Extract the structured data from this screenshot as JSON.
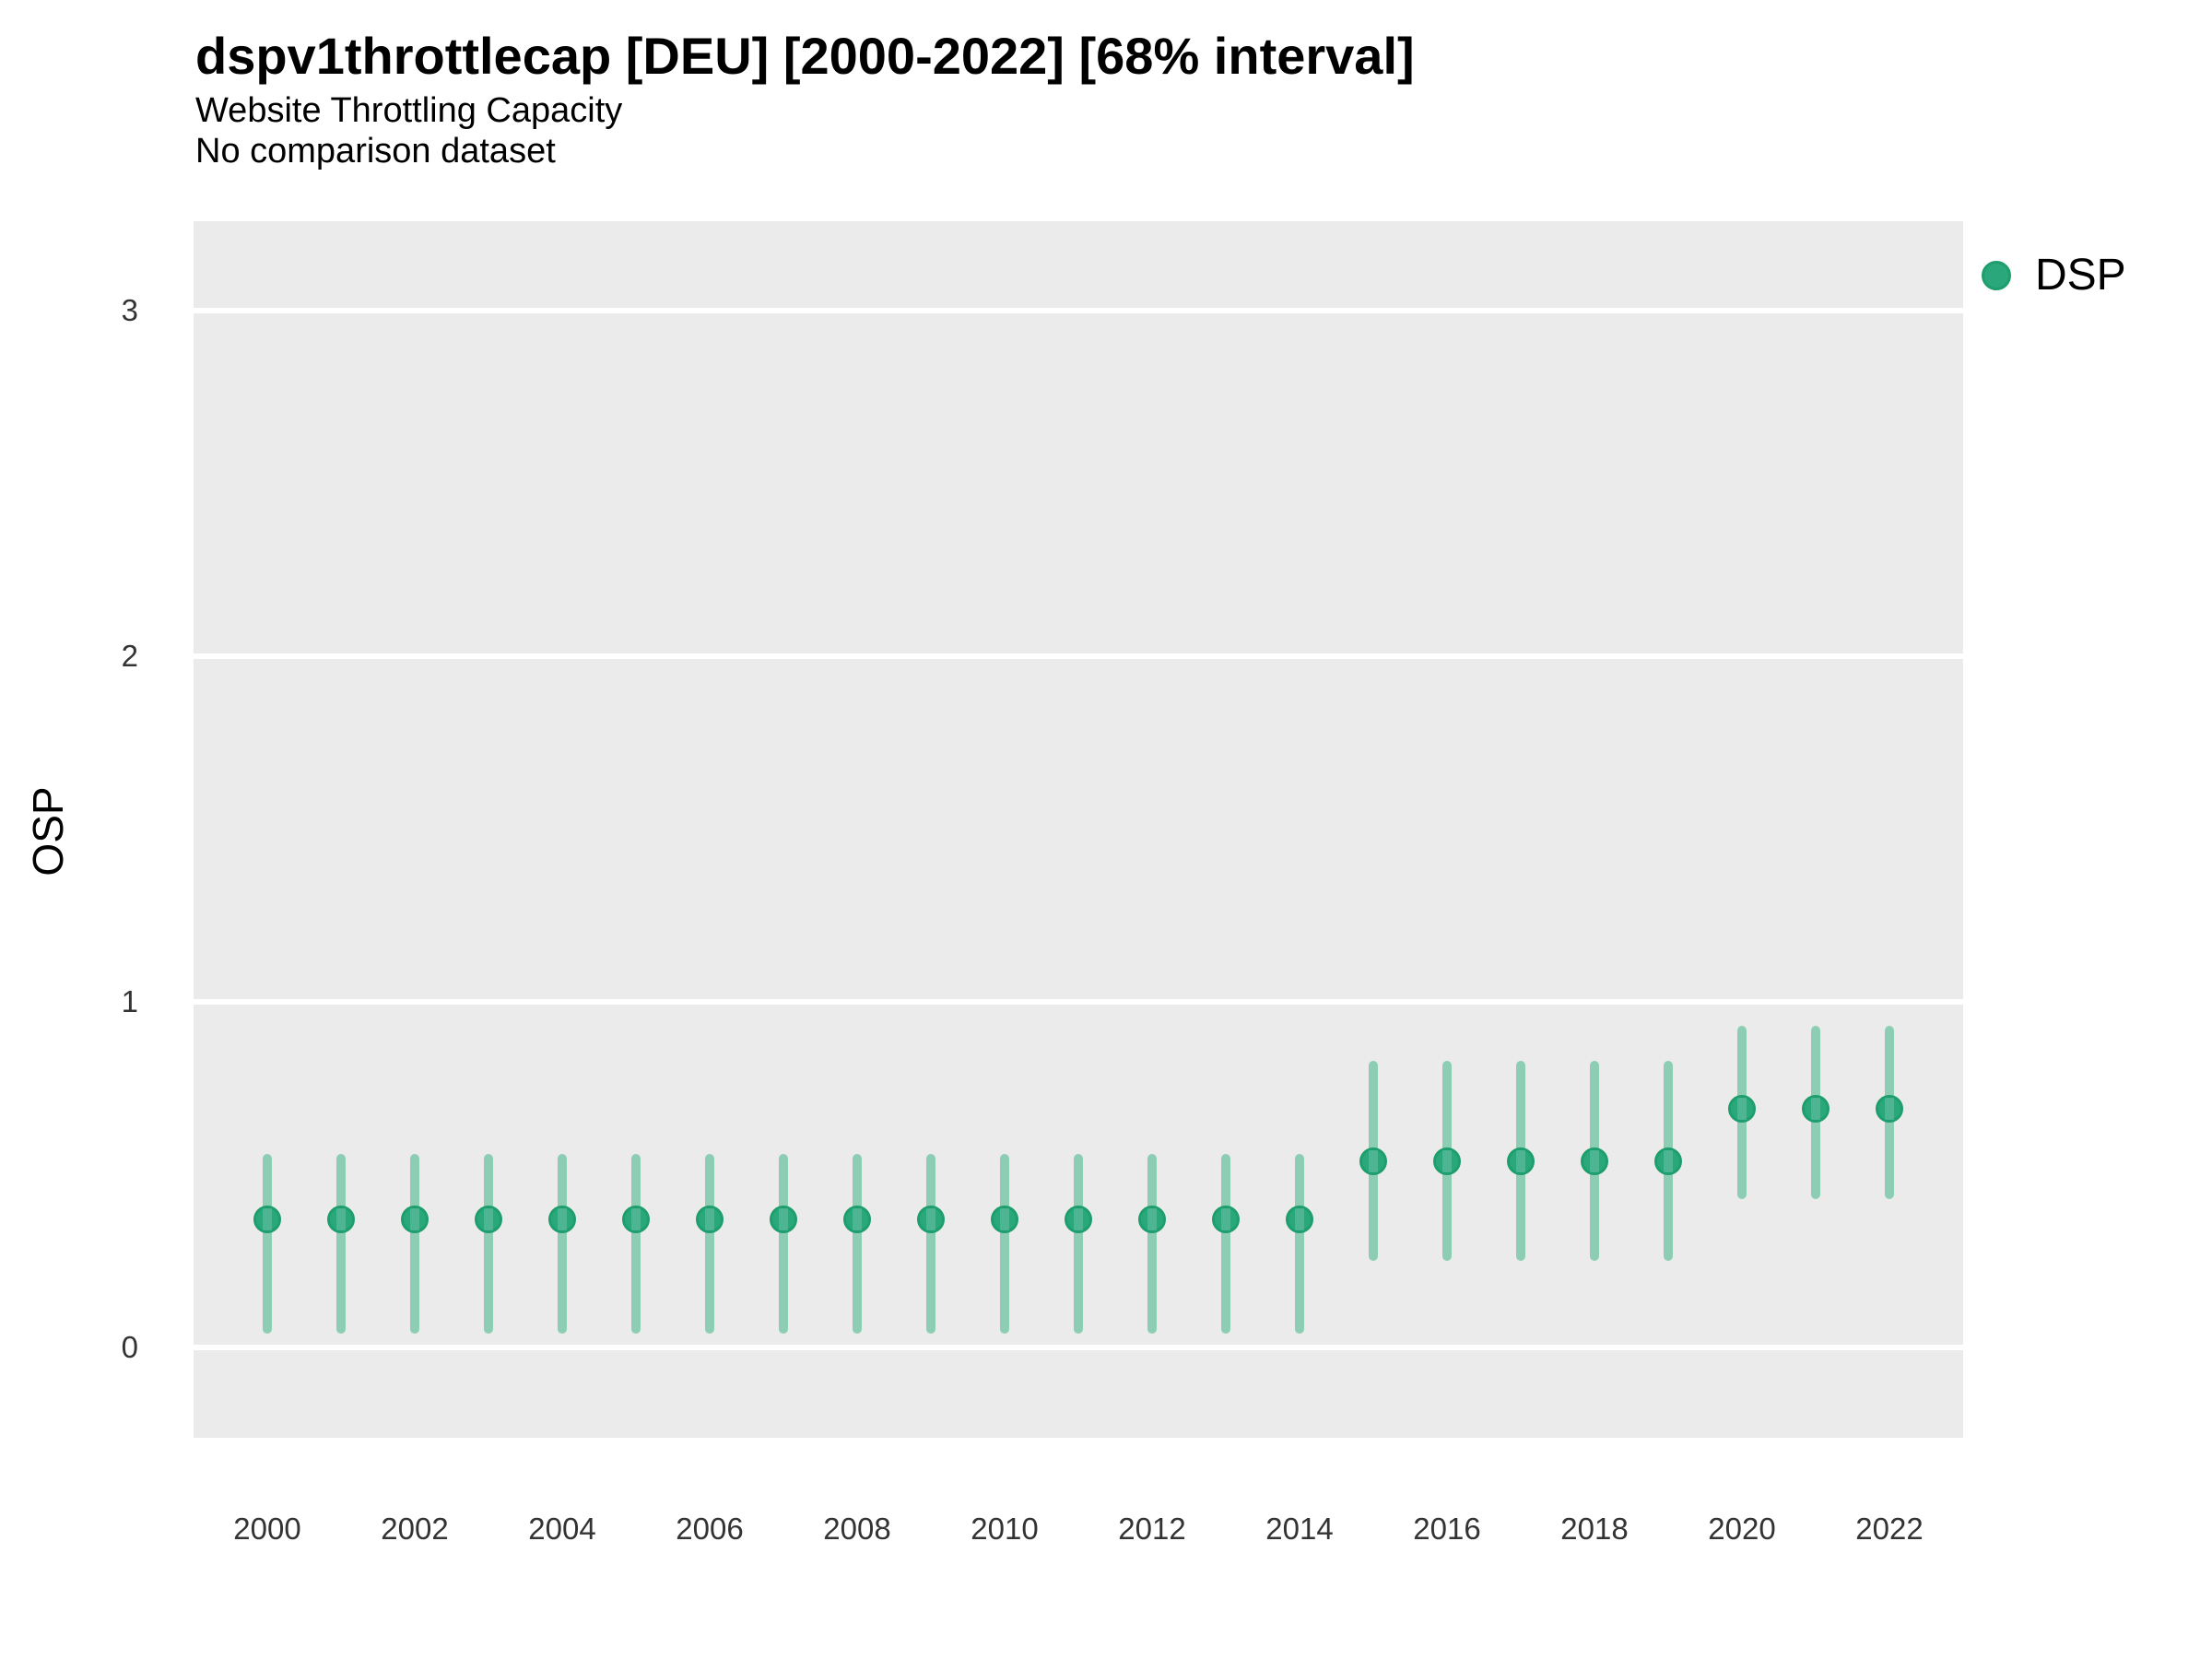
{
  "header": {
    "title": "dspv1throttlecap [DEU] [2000-2022] [68% interval]",
    "subtitle": "Website Throttling Capacity",
    "comparison_note": "No comparison dataset"
  },
  "axes": {
    "y_label": "OSP",
    "y_ticks": [
      0,
      1,
      2,
      3
    ],
    "x_ticks": [
      2000,
      2002,
      2004,
      2006,
      2008,
      2010,
      2012,
      2014,
      2016,
      2018,
      2020,
      2022
    ]
  },
  "legend": {
    "series_label": "DSP",
    "position": "right",
    "marker": "circle"
  },
  "colors": {
    "point_fill": "#2ba77c",
    "point_stroke": "#1d9e6c",
    "interval_bar": "#8ccdb3",
    "panel_background": "#ebebeb",
    "gridline": "#ffffff"
  },
  "chart_data": {
    "type": "scatter",
    "title": "dspv1throttlecap [DEU] [2000-2022] [68% interval]",
    "subtitle": "Website Throttling Capacity",
    "xlabel": "",
    "ylabel": "OSP",
    "interval_level": "68%",
    "grid": "horizontal-major-only",
    "legend_position": "right",
    "xlim": [
      1999,
      2023
    ],
    "ylim": [
      -0.25,
      3.25
    ],
    "x": [
      2000,
      2001,
      2002,
      2003,
      2004,
      2005,
      2006,
      2007,
      2008,
      2009,
      2010,
      2011,
      2012,
      2013,
      2014,
      2015,
      2016,
      2017,
      2018,
      2019,
      2020,
      2021,
      2022
    ],
    "series": [
      {
        "name": "DSP",
        "values": [
          0.37,
          0.37,
          0.37,
          0.37,
          0.37,
          0.37,
          0.37,
          0.37,
          0.37,
          0.37,
          0.37,
          0.37,
          0.37,
          0.37,
          0.37,
          0.54,
          0.54,
          0.54,
          0.54,
          0.54,
          0.69,
          0.69,
          0.69
        ],
        "interval_low": [
          0.04,
          0.04,
          0.04,
          0.04,
          0.04,
          0.04,
          0.04,
          0.04,
          0.04,
          0.04,
          0.04,
          0.04,
          0.04,
          0.04,
          0.04,
          0.25,
          0.25,
          0.25,
          0.25,
          0.25,
          0.43,
          0.43,
          0.43
        ],
        "interval_high": [
          0.56,
          0.56,
          0.56,
          0.56,
          0.56,
          0.56,
          0.56,
          0.56,
          0.56,
          0.56,
          0.56,
          0.56,
          0.56,
          0.56,
          0.56,
          0.83,
          0.83,
          0.83,
          0.83,
          0.83,
          0.93,
          0.93,
          0.93
        ]
      }
    ]
  }
}
